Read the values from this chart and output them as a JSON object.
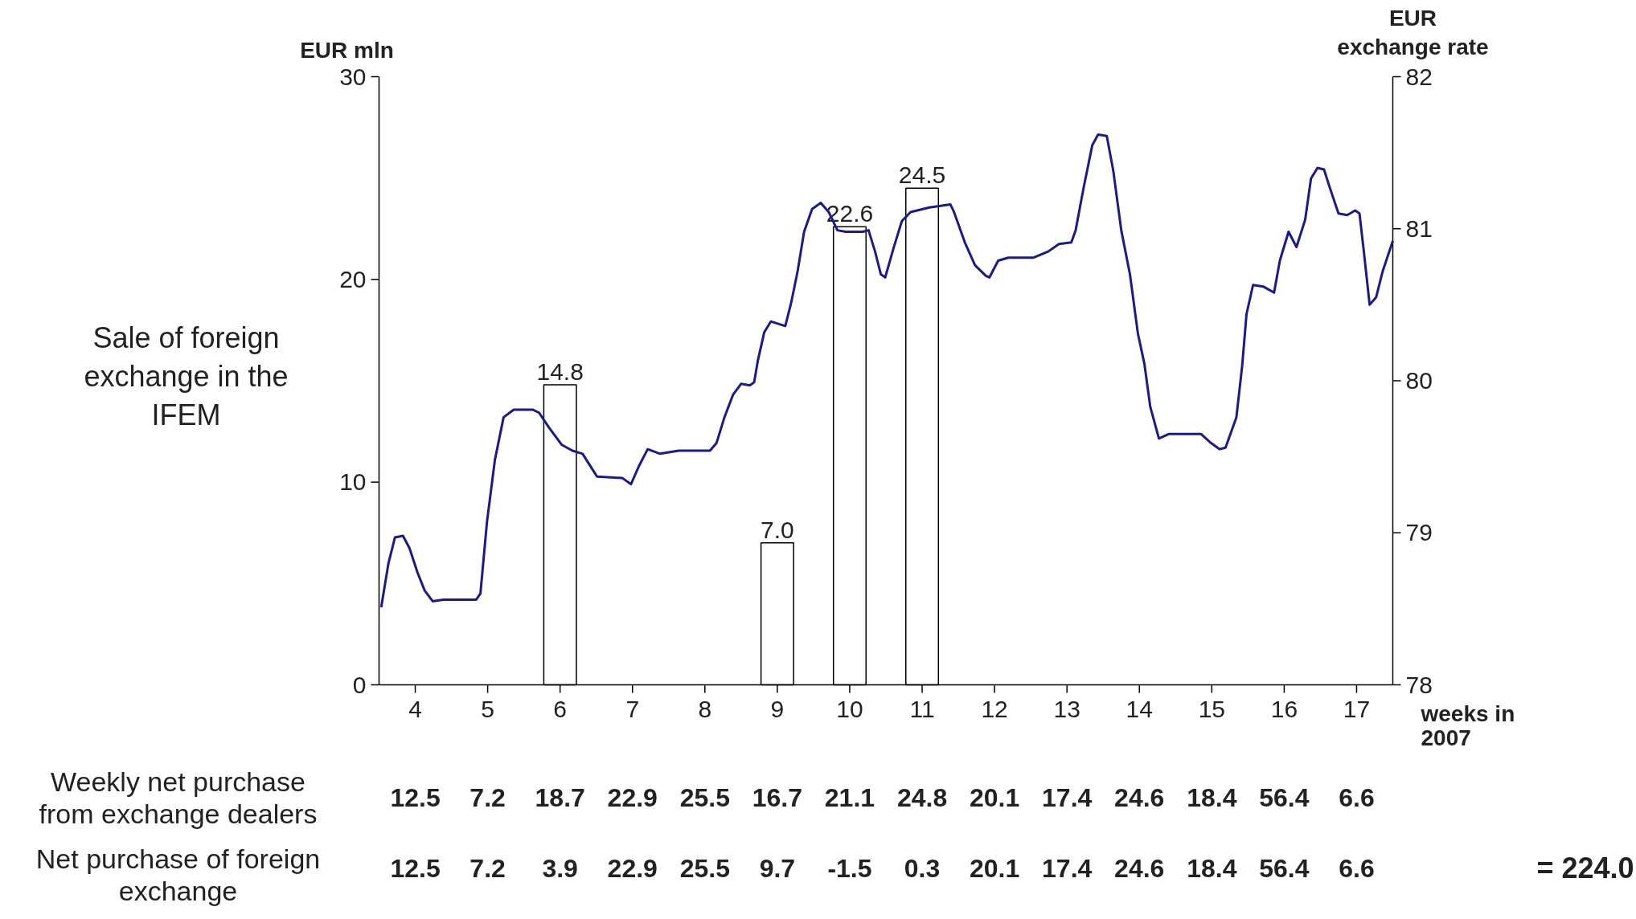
{
  "chart_data": {
    "type": "bar",
    "ylabel": "EUR mln",
    "y2label": "EUR exchange rate",
    "xlabel": "weeks in 2007",
    "xlim": [
      3.5,
      17.5
    ],
    "xticks": [
      4,
      5,
      6,
      7,
      8,
      9,
      10,
      11,
      12,
      13,
      14,
      15,
      16,
      17
    ],
    "ylim": [
      0,
      30
    ],
    "yticks": [
      0,
      10,
      20,
      30
    ],
    "y2lim": [
      78,
      82
    ],
    "y2ticks": [
      78,
      79,
      80,
      81,
      82
    ],
    "grid": false,
    "marker": "none",
    "line_style": "solid",
    "series": [
      {
        "name": "Sale of foreign exchange in the IFEM",
        "color": "#000000",
        "x": [
          6,
          9,
          10,
          11
        ],
        "values": [
          14.8,
          7.0,
          22.6,
          24.5
        ],
        "value_labels": [
          "14.8",
          "7.0",
          "22.6",
          "24.5"
        ]
      },
      {
        "type": "line",
        "axis": "y2",
        "color": "#1a1a8c",
        "x": [
          3.53,
          3.63,
          3.72,
          3.83,
          3.92,
          4.03,
          4.13,
          4.24,
          4.39,
          4.84,
          4.9,
          4.99,
          5.1,
          5.22,
          5.36,
          5.62,
          5.71,
          5.85,
          6.02,
          6.17,
          6.31,
          6.43,
          6.51,
          6.86,
          6.98,
          7.09,
          7.21,
          7.38,
          7.64,
          8.07,
          8.16,
          8.27,
          8.39,
          8.5,
          8.62,
          8.68,
          8.73,
          8.82,
          8.91,
          9.11,
          9.19,
          9.28,
          9.37,
          9.48,
          9.6,
          9.71,
          9.83,
          9.94,
          10.18,
          10.26,
          10.35,
          10.43,
          10.49,
          10.61,
          10.72,
          10.84,
          11.1,
          11.39,
          11.44,
          11.59,
          11.73,
          11.88,
          11.93,
          12.05,
          12.19,
          12.54,
          12.74,
          12.89,
          13.06,
          13.12,
          13.23,
          13.35,
          13.43,
          13.55,
          13.64,
          13.75,
          13.87,
          13.98,
          14.07,
          14.15,
          14.27,
          14.41,
          14.85,
          14.99,
          15.11,
          15.19,
          15.34,
          15.42,
          15.48,
          15.57,
          15.71,
          15.86,
          15.94,
          16.06,
          16.17,
          16.29,
          16.37,
          16.46,
          16.55,
          16.63,
          16.75,
          16.87,
          16.98,
          17.04,
          17.1,
          17.18,
          17.27,
          17.36,
          17.5
        ],
        "values": [
          78.51,
          78.8,
          78.97,
          78.98,
          78.9,
          78.74,
          78.62,
          78.55,
          78.56,
          78.56,
          78.6,
          79.07,
          79.48,
          79.76,
          79.81,
          79.81,
          79.79,
          79.69,
          79.58,
          79.54,
          79.52,
          79.43,
          79.37,
          79.36,
          79.32,
          79.44,
          79.55,
          79.52,
          79.54,
          79.54,
          79.59,
          79.76,
          79.91,
          79.98,
          79.97,
          79.99,
          80.13,
          80.32,
          80.39,
          80.36,
          80.51,
          80.72,
          80.98,
          81.13,
          81.17,
          81.11,
          80.99,
          80.98,
          80.98,
          80.99,
          80.85,
          80.7,
          80.68,
          80.88,
          81.05,
          81.11,
          81.14,
          81.16,
          81.11,
          80.91,
          80.76,
          80.69,
          80.68,
          80.79,
          80.81,
          80.81,
          80.85,
          80.9,
          80.91,
          80.99,
          81.27,
          81.55,
          81.62,
          81.61,
          81.38,
          80.99,
          80.7,
          80.31,
          80.11,
          79.83,
          79.62,
          79.65,
          79.65,
          79.59,
          79.55,
          79.56,
          79.76,
          80.1,
          80.44,
          80.63,
          80.62,
          80.58,
          80.79,
          80.98,
          80.88,
          81.06,
          81.33,
          81.4,
          81.39,
          81.27,
          81.1,
          81.09,
          81.12,
          81.1,
          80.85,
          80.5,
          80.55,
          80.72,
          80.92
        ]
      }
    ],
    "annotations": [
      "Weekly net purchase from exchange dealers",
      "12.5",
      "7.2",
      "18.7",
      "22.9",
      "25.5",
      "16.7",
      "21.1",
      "24.8",
      "20.1",
      "17.4",
      "24.6",
      "18.4",
      "56.4",
      "6.6",
      "Net purchase of foreign exchange",
      "12.5",
      "7.2",
      "3.9",
      "22.9",
      "25.5",
      "9.7",
      "-1.5",
      "0.3",
      "20.1",
      "17.4",
      "24.6",
      "18.4",
      "56.4",
      "6.6",
      "= 224.0"
    ]
  }
}
